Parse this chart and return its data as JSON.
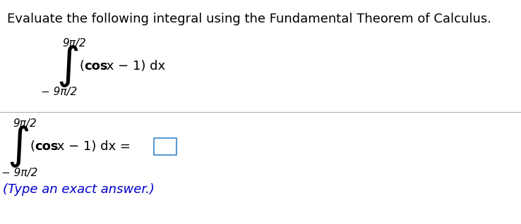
{
  "title_text": "Evaluate the following integral using the Fundamental Theorem of Calculus.",
  "title_color": "#000000",
  "title_fontsize": 13.0,
  "bg_color": "#ffffff",
  "divider_color": "#b0b0b0",
  "text_color": "#000000",
  "blue_color": "#0000cc",
  "box_edge_color": "#5b9bd5",
  "upper_limit": "9π/2",
  "lower_limit": "− 9π/2",
  "type_answer_text": "(Type an exact answer.)",
  "integral_fontsize": 32,
  "limit_fontsize": 11,
  "body_fontsize": 13,
  "hint_fontsize": 13
}
